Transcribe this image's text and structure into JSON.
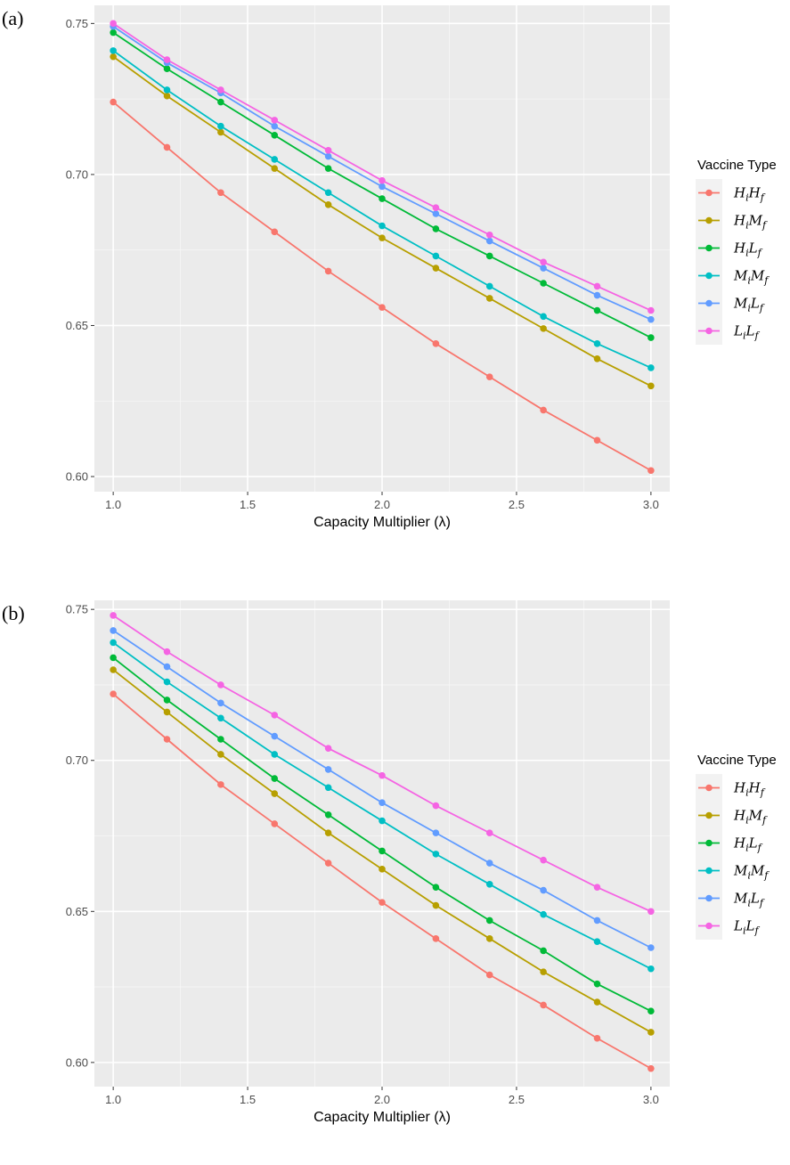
{
  "chart_data": [
    {
      "panel": "(a)",
      "type": "line",
      "xlabel": "Capacity Multiplier (λ)",
      "ylabel": "",
      "xlim": [
        0.93,
        3.07
      ],
      "ylim": [
        0.595,
        0.756
      ],
      "x_ticks": [
        "1.0",
        "1.5",
        "2.0",
        "2.5",
        "3.0"
      ],
      "y_ticks": [
        "0.60",
        "0.65",
        "0.70",
        "0.75"
      ],
      "grid": true,
      "legend_position": "right",
      "legend_title": "Vaccine Type",
      "x": [
        1.0,
        1.2,
        1.4,
        1.6,
        1.8,
        2.0,
        2.2,
        2.4,
        2.6,
        2.8,
        3.0
      ],
      "series": [
        {
          "name": "HiHf",
          "base": "H",
          "sub1": "i",
          "base2": "H",
          "sub2": "f",
          "color": "#F8766D",
          "values": [
            0.724,
            0.709,
            0.694,
            0.681,
            0.668,
            0.656,
            0.644,
            0.633,
            0.622,
            0.612,
            0.602
          ]
        },
        {
          "name": "HiMf",
          "base": "H",
          "sub1": "i",
          "base2": "M",
          "sub2": "f",
          "color": "#B79F00",
          "values": [
            0.739,
            0.726,
            0.714,
            0.702,
            0.69,
            0.679,
            0.669,
            0.659,
            0.649,
            0.639,
            0.63
          ]
        },
        {
          "name": "HiLf",
          "base": "H",
          "sub1": "i",
          "base2": "L",
          "sub2": "f",
          "color": "#00BA38",
          "values": [
            0.747,
            0.735,
            0.724,
            0.713,
            0.702,
            0.692,
            0.682,
            0.673,
            0.664,
            0.655,
            0.646
          ]
        },
        {
          "name": "MiMf",
          "base": "M",
          "sub1": "i",
          "base2": "M",
          "sub2": "f",
          "color": "#00BFC4",
          "values": [
            0.741,
            0.728,
            0.716,
            0.705,
            0.694,
            0.683,
            0.673,
            0.663,
            0.653,
            0.644,
            0.636
          ]
        },
        {
          "name": "MiLf",
          "base": "M",
          "sub1": "i",
          "base2": "L",
          "sub2": "f",
          "color": "#619CFF",
          "values": [
            0.749,
            0.737,
            0.727,
            0.716,
            0.706,
            0.696,
            0.687,
            0.678,
            0.669,
            0.66,
            0.652
          ]
        },
        {
          "name": "LiLf",
          "base": "L",
          "sub1": "i",
          "base2": "L",
          "sub2": "f",
          "color": "#F564E3",
          "values": [
            0.75,
            0.738,
            0.728,
            0.718,
            0.708,
            0.698,
            0.689,
            0.68,
            0.671,
            0.663,
            0.655
          ]
        }
      ]
    },
    {
      "panel": "(b)",
      "type": "line",
      "xlabel": "Capacity Multiplier (λ)",
      "ylabel": "",
      "xlim": [
        0.93,
        3.07
      ],
      "ylim": [
        0.592,
        0.753
      ],
      "x_ticks": [
        "1.0",
        "1.5",
        "2.0",
        "2.5",
        "3.0"
      ],
      "y_ticks": [
        "0.60",
        "0.65",
        "0.70",
        "0.75"
      ],
      "grid": true,
      "legend_position": "right",
      "legend_title": "Vaccine Type",
      "x": [
        1.0,
        1.2,
        1.4,
        1.6,
        1.8,
        2.0,
        2.2,
        2.4,
        2.6,
        2.8,
        3.0
      ],
      "series": [
        {
          "name": "HiHf",
          "base": "H",
          "sub1": "i",
          "base2": "H",
          "sub2": "f",
          "color": "#F8766D",
          "values": [
            0.722,
            0.707,
            0.692,
            0.679,
            0.666,
            0.653,
            0.641,
            0.629,
            0.619,
            0.608,
            0.598
          ]
        },
        {
          "name": "HiMf",
          "base": "H",
          "sub1": "i",
          "base2": "M",
          "sub2": "f",
          "color": "#B79F00",
          "values": [
            0.73,
            0.716,
            0.702,
            0.689,
            0.676,
            0.664,
            0.652,
            0.641,
            0.63,
            0.62,
            0.61
          ]
        },
        {
          "name": "HiLf",
          "base": "H",
          "sub1": "i",
          "base2": "L",
          "sub2": "f",
          "color": "#00BA38",
          "values": [
            0.734,
            0.72,
            0.707,
            0.694,
            0.682,
            0.67,
            0.658,
            0.647,
            0.637,
            0.626,
            0.617
          ]
        },
        {
          "name": "MiMf",
          "base": "M",
          "sub1": "i",
          "base2": "M",
          "sub2": "f",
          "color": "#00BFC4",
          "values": [
            0.739,
            0.726,
            0.714,
            0.702,
            0.691,
            0.68,
            0.669,
            0.659,
            0.649,
            0.64,
            0.631
          ]
        },
        {
          "name": "MiLf",
          "base": "M",
          "sub1": "i",
          "base2": "L",
          "sub2": "f",
          "color": "#619CFF",
          "values": [
            0.743,
            0.731,
            0.719,
            0.708,
            0.697,
            0.686,
            0.676,
            0.666,
            0.657,
            0.647,
            0.638
          ]
        },
        {
          "name": "LiLf",
          "base": "L",
          "sub1": "i",
          "base2": "L",
          "sub2": "f",
          "color": "#F564E3",
          "values": [
            0.748,
            0.736,
            0.725,
            0.715,
            0.704,
            0.695,
            0.685,
            0.676,
            0.667,
            0.658,
            0.65
          ]
        }
      ]
    }
  ]
}
